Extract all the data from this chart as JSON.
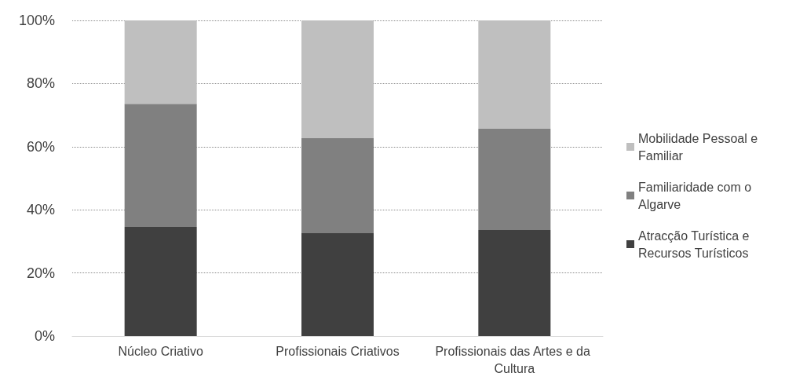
{
  "chart_data": {
    "type": "bar",
    "stacked": true,
    "categories": [
      "Núcleo Criativo",
      "Profissionais Criativos",
      "Profissionais das Artes e da Cultura"
    ],
    "series": [
      {
        "name": "Atracção Turística e Recursos Turísticos",
        "color": "#404040",
        "values": [
          34.6,
          32.6,
          33.6
        ]
      },
      {
        "name": "Familiaridade com o Algarve",
        "color": "#808080",
        "values": [
          39.0,
          30.1,
          32.1
        ]
      },
      {
        "name": "Mobilidade Pessoal e Familiar",
        "color": "#bfbfbf",
        "values": [
          26.4,
          37.3,
          34.3
        ]
      }
    ],
    "ylim": [
      0,
      100
    ],
    "yticks": [
      {
        "value": 0,
        "label": "0%"
      },
      {
        "value": 20,
        "label": "20%"
      },
      {
        "value": 40,
        "label": "40%"
      },
      {
        "value": 60,
        "label": "60%"
      },
      {
        "value": 80,
        "label": "80%"
      },
      {
        "value": 100,
        "label": "100%"
      }
    ],
    "grid": "y",
    "legend": "right"
  }
}
